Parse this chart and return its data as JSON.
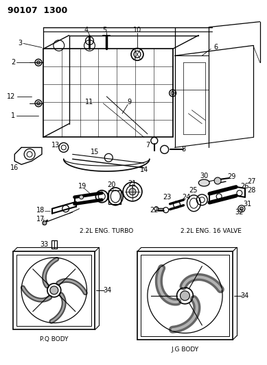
{
  "title": "90107  1300",
  "background_color": "#ffffff",
  "line_color": "#000000",
  "figsize": [
    3.89,
    5.33
  ],
  "dpi": 100,
  "section_labels": {
    "turbo": "2.2L ENG. TURBO",
    "valve": "2.2L ENG. 16 VALVE",
    "pq": "P.Q BODY",
    "jg": "J.G BODY"
  }
}
